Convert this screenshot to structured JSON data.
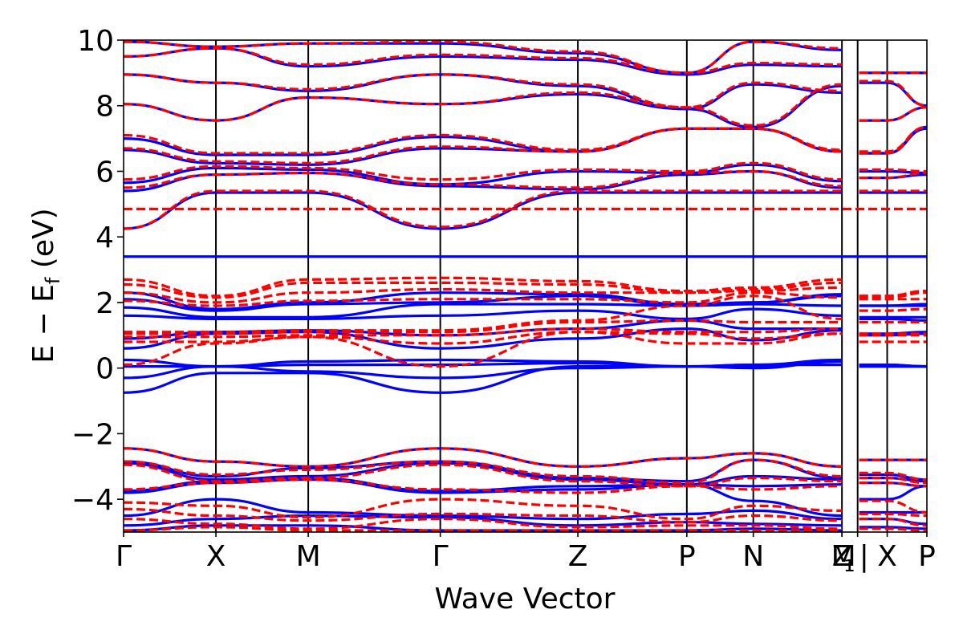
{
  "chart_data": {
    "type": "line",
    "xlabel": "Wave Vector",
    "ylabel": "E − E_f (eV)",
    "ylabel_main": "E  −  E",
    "ylabel_sub": "f",
    "ylabel_unit": "(eV)",
    "ylim": [
      -5,
      10
    ],
    "yticks": [
      -4,
      -2,
      0,
      2,
      4,
      6,
      8,
      10
    ],
    "ytick_labels": [
      "−4",
      "−2",
      "0",
      "2",
      "4",
      "6",
      "8",
      "10"
    ],
    "grid": false,
    "legend": "none",
    "kpoints": [
      {
        "label": "Γ",
        "x": 0.0
      },
      {
        "label": "X",
        "x": 1.0
      },
      {
        "label": "M",
        "x": 2.0
      },
      {
        "label": "Γ",
        "x": 3.43
      },
      {
        "label": "Z",
        "x": 4.92
      },
      {
        "label": "P",
        "x": 6.1
      },
      {
        "label": "N",
        "x": 6.82
      },
      {
        "label": "Z",
        "x": 7.78
      },
      {
        "label": "M",
        "x": 7.78
      },
      {
        "label": "₁",
        "x": 7.95
      },
      {
        "label": "|",
        "x": 7.95
      },
      {
        "label": "X",
        "x": 8.27
      },
      {
        "label": "P",
        "x": 8.7
      }
    ],
    "path_breaks": [
      7.95
    ],
    "flat_bands": [
      {
        "name": "blue",
        "y": 3.4
      },
      {
        "name": "red",
        "y": 4.85
      }
    ],
    "series": [
      {
        "color": "#0000ff",
        "style": "solid",
        "bands": [
          [
            4.25,
            5.35,
            5.35,
            4.25,
            5.35,
            5.35,
            5.35,
            5.35,
            5.35,
            5.35
          ],
          [
            5.4,
            5.9,
            5.95,
            5.55,
            5.45,
            5.9,
            6.0,
            5.5,
            5.8,
            5.9
          ],
          [
            5.65,
            6.1,
            6.05,
            5.6,
            6.0,
            5.95,
            6.2,
            5.7,
            6.0,
            5.95
          ],
          [
            6.65,
            6.25,
            6.2,
            6.7,
            6.6,
            7.3,
            7.3,
            6.6,
            6.55,
            7.3
          ],
          [
            7.0,
            6.5,
            6.5,
            7.05,
            6.6,
            7.3,
            7.3,
            6.6,
            6.55,
            7.35
          ],
          [
            8.05,
            7.55,
            8.25,
            8.05,
            8.35,
            7.9,
            8.65,
            8.4,
            7.55,
            7.95
          ],
          [
            8.95,
            8.7,
            8.45,
            8.95,
            8.6,
            7.9,
            7.35,
            8.6,
            8.7,
            8.0
          ],
          [
            9.5,
            9.75,
            9.2,
            9.5,
            9.4,
            8.95,
            9.25,
            9.2,
            9.0,
            9.0
          ],
          [
            9.95,
            9.8,
            9.9,
            9.9,
            9.6,
            9.0,
            9.95,
            9.7,
            9.0,
            9.0
          ],
          [
            -0.75,
            -0.15,
            -0.15,
            -0.75,
            0.05,
            0.05,
            0.0,
            0.2,
            0.05,
            0.05
          ],
          [
            -0.3,
            0.05,
            -0.1,
            -0.3,
            0.0,
            0.05,
            0.1,
            0.1,
            0.05,
            0.05
          ],
          [
            0.05,
            0.05,
            0.1,
            0.1,
            0.15,
            0.05,
            0.05,
            0.2,
            0.1,
            0.05
          ],
          [
            0.25,
            0.05,
            0.2,
            0.25,
            0.2,
            0.05,
            0.1,
            0.25,
            0.1,
            0.05
          ],
          [
            0.6,
            1.05,
            1.1,
            0.6,
            0.9,
            1.2,
            0.85,
            1.15,
            1.0,
            1.05
          ],
          [
            0.9,
            1.1,
            1.15,
            1.0,
            1.2,
            1.45,
            1.2,
            1.2,
            1.05,
            1.1
          ],
          [
            1.6,
            1.5,
            1.5,
            1.6,
            1.75,
            1.5,
            1.8,
            1.6,
            1.5,
            1.45
          ],
          [
            1.85,
            1.55,
            1.55,
            1.95,
            1.95,
            1.9,
            1.95,
            1.9,
            1.55,
            1.55
          ],
          [
            2.1,
            1.75,
            1.95,
            2.0,
            2.2,
            1.9,
            2.0,
            2.2,
            1.9,
            1.9
          ],
          [
            2.3,
            1.8,
            2.0,
            2.3,
            2.25,
            1.95,
            2.0,
            2.25,
            1.9,
            1.95
          ],
          [
            -2.45,
            -2.85,
            -3.0,
            -2.45,
            -3.0,
            -2.75,
            -2.6,
            -3.0,
            -2.8,
            -2.8
          ],
          [
            -2.85,
            -3.3,
            -3.05,
            -2.85,
            -3.35,
            -3.45,
            -2.8,
            -3.35,
            -3.25,
            -3.4
          ],
          [
            -2.9,
            -3.4,
            -3.3,
            -2.9,
            -3.4,
            -3.55,
            -3.3,
            -3.4,
            -3.35,
            -3.45
          ],
          [
            -3.75,
            -3.45,
            -3.35,
            -3.75,
            -3.6,
            -3.55,
            -3.6,
            -3.55,
            -3.5,
            -3.6
          ],
          [
            -3.8,
            -3.5,
            -3.4,
            -3.8,
            -3.7,
            -3.55,
            -4.05,
            -4.5,
            -4.0,
            -3.6
          ],
          [
            -4.5,
            -4.0,
            -4.4,
            -4.5,
            -4.6,
            -4.45,
            -4.35,
            -4.6,
            -4.4,
            -4.4
          ],
          [
            -4.8,
            -4.6,
            -4.5,
            -4.55,
            -4.8,
            -4.7,
            -4.75,
            -4.8,
            -4.6,
            -4.75
          ],
          [
            -4.95,
            -4.8,
            -4.8,
            -4.95,
            -4.95,
            -4.95,
            -4.9,
            -4.95,
            -4.85,
            -4.9
          ]
        ]
      },
      {
        "color": "#ff0000",
        "style": "dashed",
        "bands": [
          [
            4.25,
            5.4,
            5.4,
            4.3,
            5.4,
            5.4,
            5.4,
            5.4,
            5.4,
            5.4
          ],
          [
            5.5,
            5.9,
            5.95,
            5.6,
            5.5,
            5.95,
            6.0,
            5.55,
            5.8,
            5.95
          ],
          [
            5.75,
            6.15,
            6.1,
            5.75,
            6.05,
            6.0,
            6.25,
            5.75,
            6.05,
            6.0
          ],
          [
            6.7,
            6.3,
            6.25,
            6.75,
            6.6,
            7.3,
            7.3,
            6.6,
            6.55,
            7.35
          ],
          [
            7.1,
            6.55,
            6.55,
            7.1,
            6.65,
            7.3,
            7.3,
            6.65,
            6.6,
            7.35
          ],
          [
            8.05,
            7.55,
            8.25,
            8.05,
            8.4,
            7.95,
            8.7,
            8.45,
            7.55,
            7.95
          ],
          [
            8.95,
            8.7,
            8.5,
            8.95,
            8.65,
            7.95,
            7.4,
            8.65,
            8.75,
            8.0
          ],
          [
            9.5,
            9.75,
            9.25,
            9.55,
            9.45,
            9.0,
            9.3,
            9.25,
            9.0,
            9.0
          ],
          [
            9.95,
            9.8,
            9.9,
            9.95,
            9.65,
            9.0,
            9.95,
            9.75,
            9.0,
            9.0
          ],
          [
            0.1,
            0.75,
            0.95,
            0.05,
            1.1,
            0.75,
            0.75,
            1.05,
            0.8,
            0.8
          ],
          [
            0.8,
            0.8,
            0.95,
            0.75,
            1.1,
            1.05,
            0.9,
            1.05,
            1.0,
            1.0
          ],
          [
            0.95,
            0.95,
            1.0,
            1.0,
            1.2,
            1.1,
            1.1,
            1.2,
            1.05,
            1.05
          ],
          [
            1.05,
            1.05,
            1.1,
            1.1,
            1.4,
            1.45,
            1.4,
            1.4,
            1.4,
            1.4
          ],
          [
            1.1,
            1.1,
            1.15,
            1.15,
            1.45,
            1.9,
            2.2,
            1.5,
            1.75,
            1.8
          ],
          [
            2.05,
            1.9,
            2.05,
            2.1,
            2.1,
            2.0,
            2.3,
            2.15,
            2.1,
            2.1
          ],
          [
            2.3,
            2.0,
            2.3,
            2.4,
            2.3,
            2.3,
            2.35,
            2.45,
            2.15,
            2.3
          ],
          [
            2.55,
            2.15,
            2.6,
            2.6,
            2.55,
            2.3,
            2.4,
            2.6,
            2.2,
            2.35
          ],
          [
            2.7,
            2.2,
            2.7,
            2.75,
            2.65,
            2.35,
            2.45,
            2.7,
            2.2,
            2.35
          ],
          [
            -2.45,
            -2.85,
            -3.0,
            -2.45,
            -3.0,
            -2.75,
            -2.6,
            -3.0,
            -2.8,
            -2.8
          ],
          [
            -2.85,
            -3.25,
            -3.1,
            -2.85,
            -3.3,
            -3.5,
            -2.8,
            -3.3,
            -3.2,
            -3.4
          ],
          [
            -2.95,
            -3.45,
            -3.35,
            -2.95,
            -3.45,
            -3.6,
            -3.35,
            -3.45,
            -3.35,
            -3.5
          ],
          [
            -3.7,
            -3.5,
            -3.4,
            -3.7,
            -3.8,
            -3.6,
            -3.7,
            -3.6,
            -3.5,
            -3.6
          ],
          [
            -4.1,
            -4.2,
            -4.55,
            -4.0,
            -4.2,
            -4.6,
            -4.2,
            -4.35,
            -4.05,
            -4.4
          ],
          [
            -4.3,
            -4.5,
            -4.65,
            -4.45,
            -4.5,
            -4.7,
            -4.5,
            -4.65,
            -4.45,
            -4.5
          ],
          [
            -4.6,
            -4.75,
            -4.9,
            -4.6,
            -4.85,
            -4.8,
            -4.8,
            -4.9,
            -4.6,
            -4.8
          ],
          [
            -4.95,
            -4.85,
            -4.95,
            -4.95,
            -4.95,
            -4.95,
            -4.95,
            -4.95,
            -4.9,
            -4.95
          ]
        ]
      }
    ]
  },
  "colors": {
    "blue": "#0000ff",
    "red": "#ff0000",
    "axes": "#000000",
    "background": "#ffffff"
  }
}
